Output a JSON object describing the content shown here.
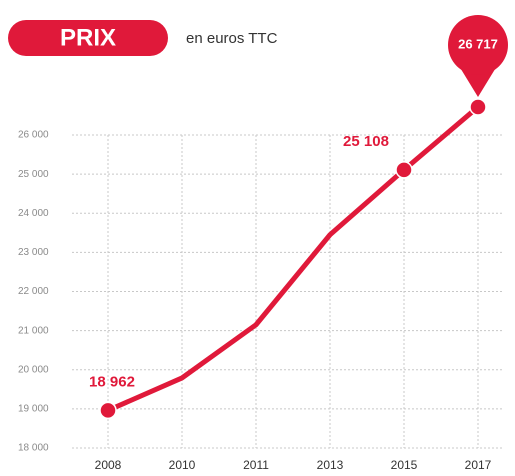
{
  "chart_data": {
    "type": "line",
    "badge": "PRIX",
    "subtitle": "en euros TTC",
    "categories": [
      "2008",
      "2010",
      "2011",
      "2013",
      "2015",
      "2017"
    ],
    "values": [
      18962,
      19790,
      21150,
      23450,
      25108,
      26717
    ],
    "value_labels": [
      "18 962",
      null,
      null,
      null,
      "25 108",
      "26 717"
    ],
    "color": "#e0193a",
    "ylim": [
      18000,
      26000
    ],
    "yticks": [
      {
        "value": 18000,
        "label": "18 000"
      },
      {
        "value": 19000,
        "label": "19 000"
      },
      {
        "value": 20000,
        "label": "20 000"
      },
      {
        "value": 21000,
        "label": "21 000"
      },
      {
        "value": 22000,
        "label": "22 000"
      },
      {
        "value": 23000,
        "label": "23 000"
      },
      {
        "value": 24000,
        "label": "24 000"
      },
      {
        "value": 25000,
        "label": "25 000"
      },
      {
        "value": 26000,
        "label": "26 000"
      }
    ],
    "grid": true
  }
}
